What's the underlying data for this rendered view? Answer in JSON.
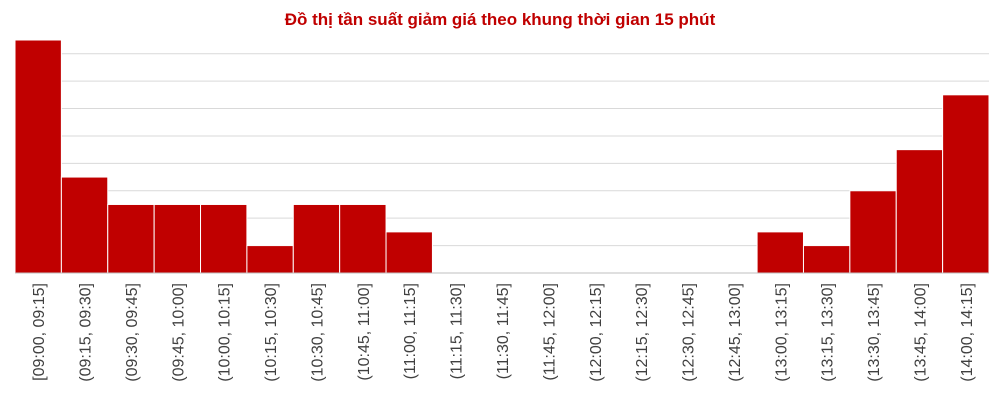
{
  "chart_data": {
    "type": "bar",
    "title": "Đồ thị tần suất giảm giá theo khung thời gian 15 phút",
    "xlabel": "",
    "ylabel": "",
    "ylim": [
      0,
      17
    ],
    "grid": true,
    "legend": "none",
    "bar_color": "#c00000",
    "categories": [
      "[09:00, 09:15]",
      "(09:15, 09:30]",
      "(09:30, 09:45]",
      "(09:45, 10:00]",
      "(10:00, 10:15]",
      "(10:15, 10:30]",
      "(10:30, 10:45]",
      "(10:45, 11:00]",
      "(11:00, 11:15]",
      "(11:15, 11:30]",
      "(11:30, 11:45]",
      "(11:45, 12:00]",
      "(12:00, 12:15]",
      "(12:15, 12:30]",
      "(12:30, 12:45]",
      "(12:45, 13:00]",
      "(13:00, 13:15]",
      "(13:15, 13:30]",
      "(13:30, 13:45]",
      "(13:45, 14:00]",
      "(14:00, 14:15]"
    ],
    "values": [
      17,
      7,
      5,
      5,
      5,
      2,
      5,
      5,
      3,
      0,
      0,
      0,
      0,
      0,
      0,
      0,
      3,
      2,
      6,
      9,
      13
    ]
  }
}
